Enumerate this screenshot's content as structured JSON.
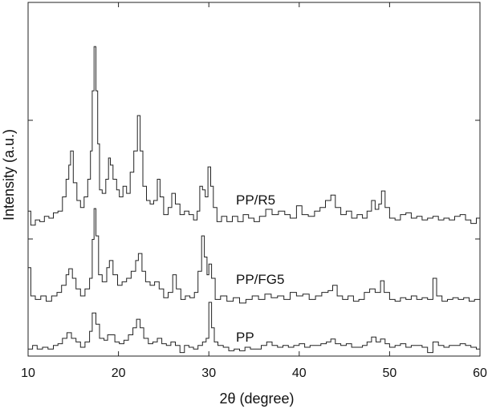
{
  "chart_data": {
    "type": "line",
    "title": "",
    "xlabel": "2θ (degree)",
    "ylabel": "Intensity (a.u.)",
    "xlim": [
      10,
      60
    ],
    "ylim": [
      0,
      100
    ],
    "xticks": [
      "10",
      "20",
      "30",
      "40",
      "50",
      "60"
    ],
    "grid": false,
    "color": "#222222",
    "series": [
      {
        "name": "PP/R5",
        "points": [
          [
            10,
            41
          ],
          [
            10.3,
            37
          ],
          [
            10.8,
            38.5
          ],
          [
            11.3,
            38
          ],
          [
            11.8,
            39.5
          ],
          [
            12.3,
            39
          ],
          [
            12.8,
            40.5
          ],
          [
            13.3,
            41
          ],
          [
            13.8,
            45
          ],
          [
            14.2,
            50
          ],
          [
            14.5,
            54
          ],
          [
            14.7,
            58
          ],
          [
            15,
            49
          ],
          [
            15.4,
            44
          ],
          [
            15.8,
            42
          ],
          [
            16.2,
            45
          ],
          [
            16.6,
            50
          ],
          [
            16.9,
            58
          ],
          [
            17.1,
            75
          ],
          [
            17.3,
            87.5
          ],
          [
            17.5,
            75
          ],
          [
            17.7,
            60
          ],
          [
            17.9,
            47
          ],
          [
            18.2,
            46
          ],
          [
            18.6,
            50
          ],
          [
            18.9,
            56
          ],
          [
            19.1,
            54
          ],
          [
            19.4,
            50
          ],
          [
            19.8,
            47
          ],
          [
            20.1,
            45
          ],
          [
            20.5,
            48
          ],
          [
            20.9,
            46
          ],
          [
            21.3,
            52
          ],
          [
            21.7,
            58
          ],
          [
            22.1,
            68
          ],
          [
            22.4,
            58
          ],
          [
            22.7,
            48
          ],
          [
            23.1,
            44
          ],
          [
            23.5,
            43
          ],
          [
            23.9,
            44
          ],
          [
            24.3,
            50
          ],
          [
            24.6,
            45
          ],
          [
            25,
            40
          ],
          [
            25.5,
            42
          ],
          [
            25.9,
            46
          ],
          [
            26.3,
            43
          ],
          [
            26.8,
            40
          ],
          [
            27.3,
            41
          ],
          [
            27.8,
            40
          ],
          [
            28.3,
            38.5
          ],
          [
            28.7,
            41
          ],
          [
            29,
            48
          ],
          [
            29.3,
            47
          ],
          [
            29.6,
            45
          ],
          [
            29.9,
            53.5
          ],
          [
            30.2,
            48
          ],
          [
            30.5,
            42
          ],
          [
            30.9,
            38
          ],
          [
            31.4,
            39.5
          ],
          [
            32,
            38
          ],
          [
            32.6,
            39.5
          ],
          [
            33.2,
            38
          ],
          [
            33.8,
            40
          ],
          [
            34.4,
            39
          ],
          [
            35,
            38
          ],
          [
            35.6,
            39.5
          ],
          [
            36.3,
            41.5
          ],
          [
            37,
            40
          ],
          [
            37.7,
            41
          ],
          [
            38.4,
            40
          ],
          [
            39,
            39
          ],
          [
            39.7,
            42.5
          ],
          [
            40.3,
            40
          ],
          [
            41,
            39.5
          ],
          [
            41.7,
            41
          ],
          [
            42.3,
            42
          ],
          [
            42.9,
            44
          ],
          [
            43.5,
            45.5
          ],
          [
            44,
            42
          ],
          [
            44.6,
            40
          ],
          [
            45.2,
            41
          ],
          [
            45.8,
            39
          ],
          [
            46.4,
            40
          ],
          [
            47,
            39
          ],
          [
            47.5,
            41
          ],
          [
            48,
            44
          ],
          [
            48.4,
            41.5
          ],
          [
            48.8,
            43
          ],
          [
            49.1,
            46.7
          ],
          [
            49.5,
            42
          ],
          [
            50,
            39
          ],
          [
            50.6,
            38.5
          ],
          [
            51.2,
            40
          ],
          [
            51.8,
            40.5
          ],
          [
            52.4,
            39
          ],
          [
            53,
            39.5
          ],
          [
            53.6,
            38.5
          ],
          [
            54.2,
            39
          ],
          [
            54.8,
            39.5
          ],
          [
            55.4,
            38.5
          ],
          [
            56,
            39
          ],
          [
            56.6,
            38.5
          ],
          [
            57.2,
            39.5
          ],
          [
            57.8,
            40
          ],
          [
            58.4,
            38.5
          ],
          [
            59,
            37.5
          ],
          [
            59.6,
            39
          ],
          [
            60,
            38
          ]
        ]
      },
      {
        "name": "PP/FG5",
        "points": [
          [
            10,
            25
          ],
          [
            10.3,
            17
          ],
          [
            10.8,
            16
          ],
          [
            11.4,
            17
          ],
          [
            12,
            15.5
          ],
          [
            12.6,
            17
          ],
          [
            13.2,
            18
          ],
          [
            13.7,
            20
          ],
          [
            14.2,
            23
          ],
          [
            14.5,
            24.7
          ],
          [
            14.9,
            22
          ],
          [
            15.3,
            19
          ],
          [
            15.8,
            17
          ],
          [
            16.3,
            19
          ],
          [
            16.8,
            22
          ],
          [
            17.1,
            33
          ],
          [
            17.3,
            41.7
          ],
          [
            17.5,
            34
          ],
          [
            17.8,
            23
          ],
          [
            18.2,
            21
          ],
          [
            18.7,
            25
          ],
          [
            19,
            27
          ],
          [
            19.4,
            23
          ],
          [
            19.9,
            20
          ],
          [
            20.4,
            21
          ],
          [
            20.9,
            22
          ],
          [
            21.4,
            24
          ],
          [
            21.9,
            27
          ],
          [
            22.2,
            29
          ],
          [
            22.6,
            24
          ],
          [
            23,
            21
          ],
          [
            23.5,
            20
          ],
          [
            24,
            21
          ],
          [
            24.5,
            19
          ],
          [
            25,
            16.5
          ],
          [
            25.5,
            18
          ],
          [
            26,
            23
          ],
          [
            26.4,
            19
          ],
          [
            26.9,
            16
          ],
          [
            27.4,
            17
          ],
          [
            27.9,
            16.5
          ],
          [
            28.4,
            18
          ],
          [
            28.8,
            24
          ],
          [
            29.2,
            34
          ],
          [
            29.5,
            28
          ],
          [
            29.8,
            23
          ],
          [
            30,
            26
          ],
          [
            30.3,
            22
          ],
          [
            30.7,
            16
          ],
          [
            31.3,
            17
          ],
          [
            32,
            15.5
          ],
          [
            32.7,
            16.5
          ],
          [
            33.4,
            15
          ],
          [
            34.1,
            16
          ],
          [
            34.8,
            17
          ],
          [
            35.5,
            16
          ],
          [
            36.2,
            17.5
          ],
          [
            36.9,
            16.5
          ],
          [
            37.6,
            17
          ],
          [
            38.3,
            16
          ],
          [
            39,
            18
          ],
          [
            39.7,
            17
          ],
          [
            40.4,
            17.5
          ],
          [
            41.1,
            16
          ],
          [
            41.8,
            17
          ],
          [
            42.5,
            18
          ],
          [
            43.2,
            18.5
          ],
          [
            43.7,
            20
          ],
          [
            44.2,
            17
          ],
          [
            44.8,
            16
          ],
          [
            45.4,
            17
          ],
          [
            46,
            15.5
          ],
          [
            46.6,
            16
          ],
          [
            47.2,
            18
          ],
          [
            47.8,
            19
          ],
          [
            48.4,
            18
          ],
          [
            49,
            21.3
          ],
          [
            49.4,
            18
          ],
          [
            50,
            16
          ],
          [
            50.6,
            15.5
          ],
          [
            51.2,
            16.5
          ],
          [
            51.8,
            16
          ],
          [
            52.4,
            17
          ],
          [
            53,
            16
          ],
          [
            53.6,
            16.5
          ],
          [
            54.2,
            16
          ],
          [
            54.8,
            22
          ],
          [
            55.2,
            17
          ],
          [
            55.8,
            15.5
          ],
          [
            56.4,
            16
          ],
          [
            57,
            16.5
          ],
          [
            57.6,
            16
          ],
          [
            58.2,
            16.5
          ],
          [
            58.8,
            15.5
          ],
          [
            59.4,
            16
          ],
          [
            60,
            18
          ]
        ]
      },
      {
        "name": "PP",
        "points": [
          [
            10,
            2
          ],
          [
            10.5,
            3
          ],
          [
            11,
            2
          ],
          [
            11.6,
            2.5
          ],
          [
            12.2,
            2
          ],
          [
            12.8,
            3
          ],
          [
            13.3,
            3.5
          ],
          [
            13.8,
            5
          ],
          [
            14.3,
            6.6
          ],
          [
            14.8,
            5
          ],
          [
            15.3,
            4
          ],
          [
            15.8,
            2.5
          ],
          [
            16.3,
            4
          ],
          [
            16.8,
            7
          ],
          [
            17.1,
            12.2
          ],
          [
            17.5,
            9
          ],
          [
            17.9,
            5
          ],
          [
            18.4,
            4.5
          ],
          [
            18.8,
            6
          ],
          [
            19.1,
            6
          ],
          [
            19.6,
            4
          ],
          [
            20.1,
            3.5
          ],
          [
            20.6,
            4.5
          ],
          [
            21.1,
            6
          ],
          [
            21.6,
            8
          ],
          [
            22,
            10.4
          ],
          [
            22.4,
            8
          ],
          [
            22.8,
            5
          ],
          [
            23.3,
            3.5
          ],
          [
            23.8,
            4
          ],
          [
            24.3,
            5
          ],
          [
            24.8,
            3.5
          ],
          [
            25.3,
            3
          ],
          [
            25.8,
            4
          ],
          [
            26.3,
            3
          ],
          [
            26.8,
            1
          ],
          [
            27.3,
            3
          ],
          [
            27.8,
            2.5
          ],
          [
            28.3,
            2
          ],
          [
            28.8,
            3
          ],
          [
            29.3,
            4
          ],
          [
            29.7,
            5
          ],
          [
            30,
            15.2
          ],
          [
            30.3,
            8
          ],
          [
            30.6,
            4
          ],
          [
            31,
            3
          ],
          [
            31.6,
            2.5
          ],
          [
            32.2,
            1.5
          ],
          [
            32.8,
            2
          ],
          [
            33.4,
            1.5
          ],
          [
            34,
            2.5
          ],
          [
            34.6,
            2
          ],
          [
            35.2,
            2
          ],
          [
            35.8,
            3
          ],
          [
            36.4,
            4
          ],
          [
            37,
            3
          ],
          [
            37.6,
            2.5
          ],
          [
            38.2,
            3
          ],
          [
            38.8,
            2.5
          ],
          [
            39.4,
            3
          ],
          [
            40,
            3.5
          ],
          [
            40.6,
            2.5
          ],
          [
            41.2,
            3
          ],
          [
            41.8,
            3
          ],
          [
            42.4,
            3.5
          ],
          [
            43,
            4
          ],
          [
            43.5,
            4.8
          ],
          [
            44,
            3.5
          ],
          [
            44.6,
            3
          ],
          [
            45.2,
            3.5
          ],
          [
            45.8,
            2.5
          ],
          [
            46.4,
            2.5
          ],
          [
            47,
            3
          ],
          [
            47.5,
            4
          ],
          [
            48,
            5.4
          ],
          [
            48.5,
            4
          ],
          [
            49,
            4.8
          ],
          [
            49.5,
            3.5
          ],
          [
            50,
            2.5
          ],
          [
            50.6,
            3
          ],
          [
            51.2,
            3.5
          ],
          [
            51.8,
            2.5
          ],
          [
            52.4,
            3
          ],
          [
            53,
            3
          ],
          [
            53.6,
            2.5
          ],
          [
            54.2,
            1
          ],
          [
            54.8,
            4
          ],
          [
            55.4,
            3
          ],
          [
            56,
            2.5
          ],
          [
            56.6,
            3
          ],
          [
            57.2,
            3
          ],
          [
            57.8,
            3.5
          ],
          [
            58.4,
            3
          ],
          [
            59,
            2.5
          ],
          [
            59.6,
            2
          ],
          [
            60,
            2.5
          ]
        ]
      }
    ]
  }
}
